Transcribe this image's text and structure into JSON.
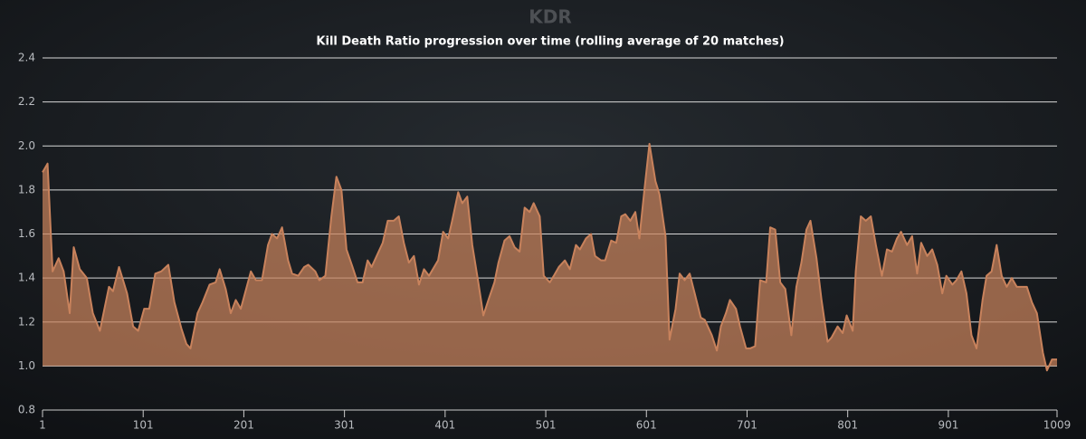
{
  "chart_data": {
    "type": "area",
    "title": "KDR",
    "subtitle": "Kill Death Ratio progression over time (rolling average of 20 matches)",
    "x": [
      1,
      6,
      11,
      17,
      22,
      28,
      32,
      38,
      45,
      51,
      58,
      67,
      71,
      77,
      85,
      91,
      96,
      102,
      107,
      113,
      119,
      126,
      132,
      139,
      144,
      148,
      155,
      160,
      167,
      173,
      177,
      183,
      188,
      193,
      198,
      208,
      213,
      219,
      225,
      229,
      234,
      239,
      245,
      249,
      255,
      261,
      265,
      272,
      276,
      282,
      288,
      293,
      298,
      303,
      309,
      314,
      319,
      324,
      328,
      335,
      339,
      344,
      350,
      355,
      360,
      365,
      370,
      375,
      380,
      385,
      394,
      399,
      404,
      408,
      414,
      418,
      423,
      428,
      434,
      439,
      444,
      450,
      454,
      460,
      465,
      470,
      475,
      480,
      485,
      489,
      495,
      499,
      505,
      509,
      514,
      520,
      525,
      531,
      535,
      541,
      546,
      550,
      556,
      560,
      566,
      571,
      576,
      580,
      585,
      590,
      594,
      599,
      604,
      610,
      614,
      620,
      624,
      630,
      634,
      639,
      644,
      649,
      655,
      659,
      666,
      671,
      675,
      680,
      684,
      690,
      694,
      700,
      704,
      709,
      714,
      720,
      724,
      729,
      734,
      739,
      745,
      750,
      755,
      760,
      764,
      770,
      775,
      781,
      785,
      791,
      796,
      800,
      806,
      809,
      814,
      819,
      824,
      829,
      835,
      840,
      845,
      850,
      854,
      860,
      865,
      870,
      874,
      880,
      885,
      890,
      895,
      899,
      905,
      909,
      914,
      919,
      924,
      929,
      935,
      939,
      944,
      949,
      954,
      959,
      964,
      969,
      979,
      984,
      989,
      995,
      999,
      1004,
      1009
    ],
    "values": [
      1.88,
      1.92,
      1.43,
      1.49,
      1.43,
      1.24,
      1.54,
      1.44,
      1.4,
      1.24,
      1.16,
      1.36,
      1.34,
      1.45,
      1.33,
      1.18,
      1.16,
      1.26,
      1.26,
      1.42,
      1.43,
      1.46,
      1.29,
      1.17,
      1.1,
      1.08,
      1.24,
      1.29,
      1.37,
      1.38,
      1.44,
      1.35,
      1.24,
      1.3,
      1.26,
      1.43,
      1.39,
      1.39,
      1.55,
      1.6,
      1.58,
      1.63,
      1.48,
      1.42,
      1.41,
      1.45,
      1.46,
      1.43,
      1.39,
      1.41,
      1.68,
      1.86,
      1.8,
      1.53,
      1.45,
      1.38,
      1.38,
      1.48,
      1.45,
      1.52,
      1.56,
      1.66,
      1.66,
      1.68,
      1.56,
      1.47,
      1.5,
      1.37,
      1.44,
      1.41,
      1.48,
      1.61,
      1.58,
      1.66,
      1.79,
      1.74,
      1.77,
      1.55,
      1.38,
      1.23,
      1.3,
      1.38,
      1.47,
      1.57,
      1.59,
      1.54,
      1.52,
      1.72,
      1.7,
      1.74,
      1.68,
      1.41,
      1.38,
      1.41,
      1.45,
      1.48,
      1.44,
      1.55,
      1.53,
      1.58,
      1.6,
      1.5,
      1.48,
      1.48,
      1.57,
      1.56,
      1.68,
      1.69,
      1.66,
      1.7,
      1.58,
      1.8,
      2.01,
      1.84,
      1.78,
      1.59,
      1.12,
      1.26,
      1.42,
      1.39,
      1.42,
      1.33,
      1.22,
      1.21,
      1.14,
      1.07,
      1.18,
      1.24,
      1.3,
      1.26,
      1.18,
      1.08,
      1.08,
      1.09,
      1.39,
      1.38,
      1.63,
      1.62,
      1.38,
      1.35,
      1.14,
      1.36,
      1.47,
      1.62,
      1.66,
      1.49,
      1.3,
      1.11,
      1.13,
      1.18,
      1.15,
      1.23,
      1.16,
      1.43,
      1.68,
      1.66,
      1.68,
      1.55,
      1.41,
      1.53,
      1.52,
      1.58,
      1.61,
      1.55,
      1.59,
      1.42,
      1.56,
      1.5,
      1.53,
      1.46,
      1.33,
      1.41,
      1.37,
      1.39,
      1.43,
      1.33,
      1.14,
      1.08,
      1.3,
      1.41,
      1.43,
      1.55,
      1.41,
      1.36,
      1.4,
      1.36,
      1.36,
      1.29,
      1.24,
      1.06,
      0.98,
      1.03,
      1.03
    ],
    "color": "#c8825c",
    "threshold": 1,
    "xlim": [
      1,
      1009
    ],
    "xticks": [
      1,
      101,
      201,
      301,
      401,
      501,
      601,
      701,
      801,
      901,
      1009
    ],
    "ylim": [
      0.8,
      2.4
    ],
    "yticks": [
      0.8,
      {
        "value": 1,
        "label": "1.0"
      },
      1.2,
      1.4,
      1.6,
      1.8,
      {
        "value": 2,
        "label": "2.0"
      },
      2.2,
      2.4
    ],
    "grid": true
  }
}
